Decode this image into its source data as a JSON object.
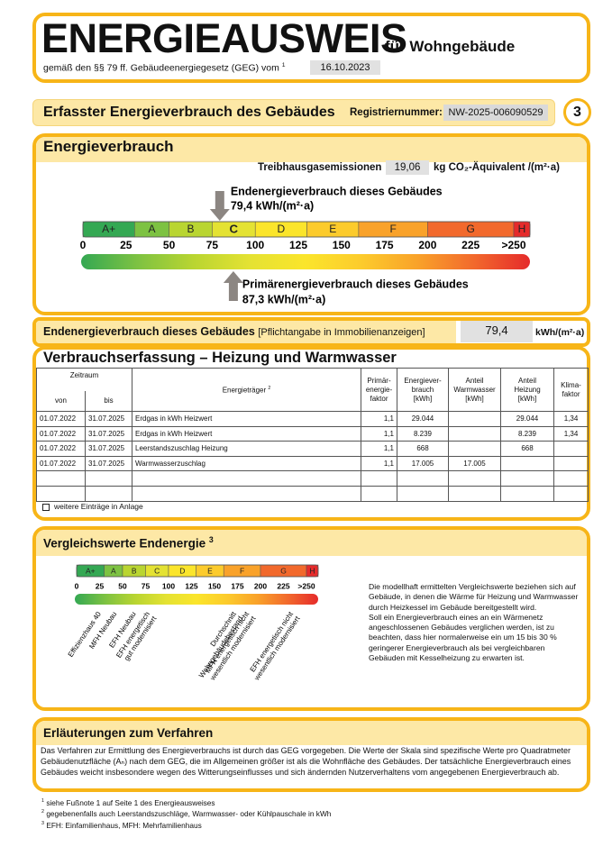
{
  "header": {
    "title": "ENERGIEAUSWEIS",
    "subtitle": "für Wohngebäude",
    "law": "gemäß den §§ 79 ff. Gebäudeenergiegesetz (GEG) vom",
    "law_note": "1",
    "date": "16.10.2023"
  },
  "section": {
    "title": "Erfasster Energieverbrauch des Gebäudes",
    "registration_label": "Registriernummer:",
    "registration_number": "NW-2025-006090529",
    "page": "3"
  },
  "consumption": {
    "title": "Energieverbrauch",
    "emissions_label": "Treibhausgasemissionen",
    "emissions_value": "19,06",
    "emissions_unit": "kg CO₂-Äquivalent /(m²·a)",
    "scale": {
      "classes": [
        "A+",
        "A",
        "B",
        "C",
        "D",
        "E",
        "F",
        "G",
        "H"
      ],
      "class_limits": [
        0,
        30,
        50,
        75,
        100,
        130,
        160,
        200,
        250
      ],
      "class_colors": [
        "#34a853",
        "#7dc242",
        "#b9d531",
        "#e4e233",
        "#fbe52b",
        "#fccb2c",
        "#f9a22a",
        "#f2692c",
        "#e52b2b"
      ],
      "ticks": [
        0,
        25,
        50,
        75,
        100,
        125,
        150,
        175,
        200,
        225,
        {
          "value": 250,
          "label": ">250"
        }
      ]
    },
    "final_energy": {
      "label": "Endenergieverbrauch dieses Gebäudes",
      "value": 79.4,
      "value_label": "79,4 kWh/(m²·a)"
    },
    "primary_energy": {
      "label": "Primärenergieverbrauch dieses Gebäudes",
      "value": 87.3,
      "value_label": "87,3 kWh/(m²·a)"
    }
  },
  "summary": {
    "label": "Endenergieverbrauch dieses Gebäudes",
    "note": "[Pflichtangabe in Immobilienanzeigen]",
    "value": "79,4",
    "unit": "kWh/(m²·a)"
  },
  "records": {
    "title": "Verbrauchserfassung – Heizung und Warmwasser",
    "columns": {
      "period": "Zeitraum",
      "from": "von",
      "to": "bis",
      "carrier": "Energieträger",
      "carrier_note": "2",
      "factor": [
        "Primär-",
        "energie-",
        "faktor"
      ],
      "consumption": [
        "Energiever-",
        "brauch",
        "[kWh]"
      ],
      "hot_water": [
        "Anteil",
        "Warmwasser",
        "[kWh]"
      ],
      "heating": [
        "Anteil",
        "Heizung",
        "[kWh]"
      ],
      "climate": [
        "Klima-",
        "faktor"
      ]
    },
    "rows": [
      [
        "01.07.2022",
        "31.07.2025",
        "Erdgas in kWh Heizwert",
        "1,1",
        "29.044",
        null,
        "29.044",
        "1,34"
      ],
      [
        "01.07.2022",
        "31.07.2025",
        "Erdgas in kWh Heizwert",
        "1,1",
        "8.239",
        null,
        "8.239",
        "1,34"
      ],
      [
        "01.07.2022",
        "31.07.2025",
        "Leerstandszuschlag Heizung",
        "1,1",
        "668",
        null,
        "668",
        null
      ],
      [
        "01.07.2022",
        "31.07.2025",
        "Warmwasserzuschlag",
        "1,1",
        "17.005",
        "17.005",
        null,
        null
      ]
    ],
    "more_note": "weitere Einträge in Anlage"
  },
  "comparison": {
    "title": "Vergleichswerte Endenergie",
    "title_note": "3",
    "scale": {
      "classes": [
        "A+",
        "A",
        "B",
        "C",
        "D",
        "E",
        "F",
        "G",
        "H"
      ],
      "class_limits": [
        0,
        30,
        50,
        75,
        100,
        130,
        160,
        200,
        250
      ],
      "class_colors": [
        "#34a853",
        "#7dc242",
        "#b9d531",
        "#e4e233",
        "#fbe52b",
        "#fccb2c",
        "#f9a22a",
        "#f2692c",
        "#e52b2b"
      ],
      "ticks": [
        0,
        25,
        50,
        75,
        100,
        125,
        150,
        175,
        200,
        225,
        {
          "value": 250,
          "label": ">250"
        }
      ]
    },
    "benchmarks": [
      {
        "label": [
          "Effizienzhaus 40"
        ],
        "value": 25
      },
      {
        "label": [
          "MFH Neubau"
        ],
        "value": 42
      },
      {
        "label": [
          "EFH Neubau"
        ],
        "value": 63
      },
      {
        "label": [
          "EFH energetisch",
          "gut modernisiert"
        ],
        "value": 78
      },
      {
        "label": [
          "Durchschnitt",
          "Wohngebäudebestand"
        ],
        "value": 172
      },
      {
        "label": [
          "MFH energetisch nicht",
          "wesentlich modernisiert"
        ],
        "value": 186
      },
      {
        "label": [
          "EFH energetisch nicht",
          "wesentlich modernisiert"
        ],
        "value": 234
      }
    ],
    "text": [
      "Die modellhaft ermittelten Vergleichswerte beziehen sich auf Gebäude, in denen die Wärme für Heizung und Warmwasser durch Heizkessel im Gebäude bereitgestellt wird.",
      "Soll ein Energieverbrauch eines an ein Wärmenetz angeschlossenen Gebäudes verglichen werden, ist zu beachten, dass hier normalerweise ein um 15 bis 30 % geringerer Energieverbrauch als bei vergleichbaren Gebäuden mit Kesselheizung zu erwarten ist."
    ]
  },
  "explanation": {
    "title": "Erläuterungen zum Verfahren",
    "text": "Das Verfahren zur Ermittlung des Energieverbrauchs ist durch das GEG vorgegeben. Die Werte der Skala sind spezifische Werte pro Quadratmeter Gebäudenutzfläche (Aₙ) nach dem GEG, die im Allgemeinen größer ist als die Wohnfläche des Gebäudes. Der tatsächliche Energieverbrauch eines Gebäudes weicht insbesondere wegen des Witterungseinflusses und sich ändernden Nutzerverhaltens vom angegebenen Energieverbrauch ab."
  },
  "footnotes": [
    {
      "mark": "1",
      "text": "siehe Fußnote 1 auf Seite 1 des Energieausweises"
    },
    {
      "mark": "2",
      "text": "gegebenenfalls auch Leerstandszuschläge, Warmwasser- oder Kühlpauschale in kWh"
    },
    {
      "mark": "3",
      "text": "EFH: Einfamilienhaus, MFH: Mehrfamilienhaus"
    }
  ]
}
